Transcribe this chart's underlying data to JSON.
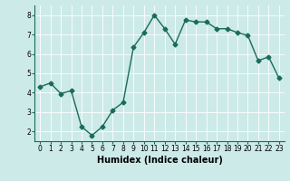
{
  "x": [
    0,
    1,
    2,
    3,
    4,
    5,
    6,
    7,
    8,
    9,
    10,
    11,
    12,
    13,
    14,
    15,
    16,
    17,
    18,
    19,
    20,
    21,
    22,
    23
  ],
  "y": [
    4.3,
    4.5,
    3.95,
    4.1,
    2.25,
    1.8,
    2.25,
    3.1,
    3.5,
    6.35,
    7.1,
    8.0,
    7.3,
    6.5,
    7.75,
    7.65,
    7.65,
    7.3,
    7.3,
    7.1,
    6.95,
    5.65,
    5.85,
    4.75
  ],
  "line_color": "#1a6b5a",
  "marker": "D",
  "markersize": 2.5,
  "linewidth": 1.0,
  "xlabel": "Humidex (Indice chaleur)",
  "xlim": [
    -0.5,
    23.5
  ],
  "ylim": [
    1.5,
    8.5
  ],
  "yticks": [
    2,
    3,
    4,
    5,
    6,
    7,
    8
  ],
  "xticks": [
    0,
    1,
    2,
    3,
    4,
    5,
    6,
    7,
    8,
    9,
    10,
    11,
    12,
    13,
    14,
    15,
    16,
    17,
    18,
    19,
    20,
    21,
    22,
    23
  ],
  "bg_color": "#cceae8",
  "grid_color": "#ffffff",
  "tick_label_fontsize": 5.5,
  "xlabel_fontsize": 7.0,
  "grid_linewidth": 0.6
}
